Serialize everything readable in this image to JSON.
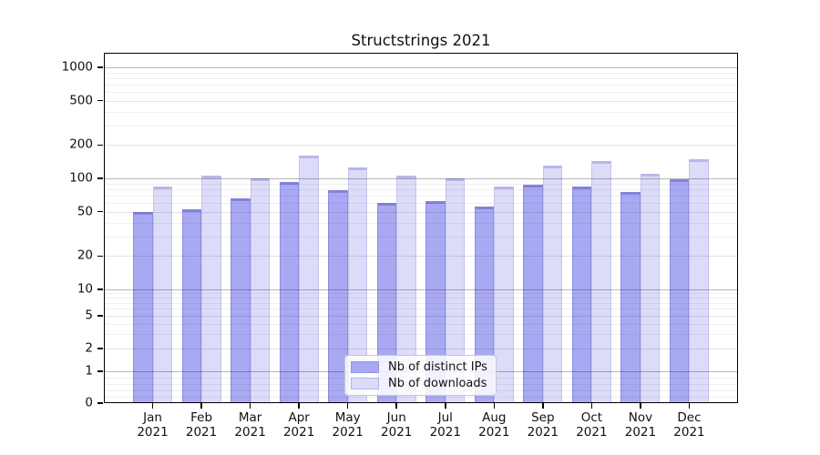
{
  "chart_data": {
    "type": "bar",
    "title": "Structstrings 2021",
    "categories": [
      "Jan",
      "Feb",
      "Mar",
      "Apr",
      "May",
      "Jun",
      "Jul",
      "Aug",
      "Sep",
      "Oct",
      "Nov",
      "Dec"
    ],
    "year_label": "2021",
    "series": [
      {
        "name": "Nb of distinct IPs",
        "color": "#a9a9f3",
        "values": [
          50,
          53,
          66,
          93,
          78,
          60,
          62,
          56,
          88,
          84,
          75,
          99
        ]
      },
      {
        "name": "Nb of downloads",
        "color": "#dcdcf9",
        "values": [
          85,
          105,
          100,
          160,
          125,
          106,
          100,
          85,
          130,
          143,
          110,
          150
        ]
      }
    ],
    "yscale": "symlog",
    "ylim": [
      0,
      1000
    ],
    "yticks": [
      1000,
      500,
      200,
      100,
      50,
      20,
      10,
      5,
      2,
      1,
      0
    ],
    "grid": true,
    "grid_on_top_of_bars": true,
    "legend_position": "bottom-center"
  }
}
